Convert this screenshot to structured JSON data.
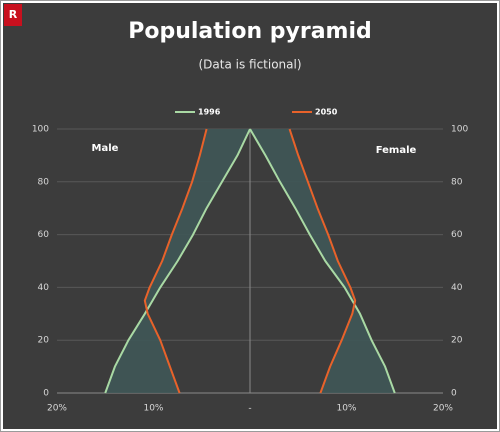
{
  "logo": "R",
  "chart_data": {
    "type": "pyramid",
    "title": "Population pyramid",
    "subtitle": "(Data is fictional)",
    "left_label": "Male",
    "right_label": "Female",
    "ages": [
      0,
      10,
      20,
      30,
      35,
      40,
      50,
      60,
      70,
      80,
      90,
      100
    ],
    "series": [
      {
        "name": "1996",
        "color": "#a9d9a4",
        "male": [
          15.0,
          14.0,
          12.6,
          10.9,
          10.1,
          9.3,
          7.5,
          5.9,
          4.5,
          2.9,
          1.3,
          0
        ],
        "female": [
          15.0,
          14.0,
          12.6,
          11.4,
          10.6,
          9.8,
          7.8,
          6.2,
          4.7,
          3.1,
          1.6,
          0
        ]
      },
      {
        "name": "2050",
        "color": "#e8622a",
        "male": [
          7.3,
          8.3,
          9.3,
          10.6,
          10.9,
          10.4,
          9.1,
          8.1,
          7.0,
          6.0,
          5.2,
          4.5
        ],
        "female": [
          7.3,
          8.3,
          9.5,
          10.6,
          10.9,
          10.4,
          9.1,
          8.1,
          7.0,
          6.0,
          5.0,
          4.1
        ]
      }
    ],
    "fill_between": true,
    "fill_color": "#3f5656",
    "xlim": [
      0,
      20
    ],
    "xticks": [
      {
        "value": 0,
        "label": "-"
      },
      {
        "value": 10,
        "label": "10%"
      },
      {
        "value": 20,
        "label": "20%"
      }
    ],
    "ylim": [
      0,
      100
    ],
    "yticks": [
      0,
      20,
      40,
      60,
      80,
      100
    ],
    "y2lim": [
      0,
      100
    ],
    "y2ticks": [
      0,
      20,
      40,
      60,
      80,
      100
    ],
    "grid": true,
    "legend": "top"
  }
}
